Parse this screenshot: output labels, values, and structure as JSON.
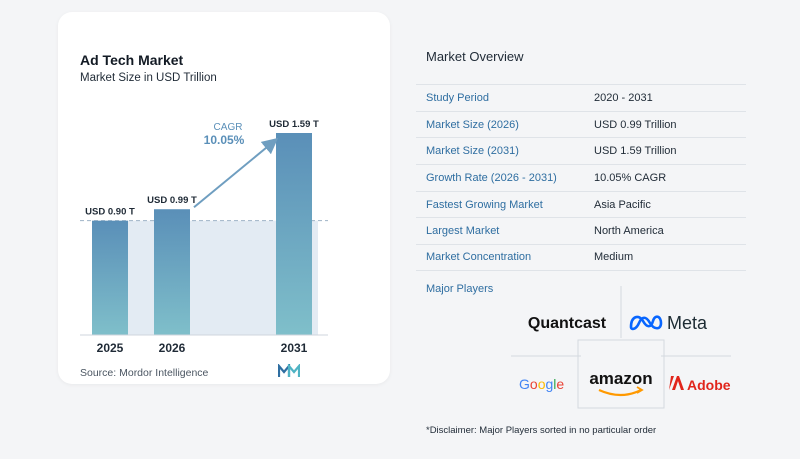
{
  "chart_data": {
    "type": "bar",
    "title": "Ad Tech Market",
    "subtitle": "Market Size in USD Trillion",
    "categories": [
      "2025",
      "2026",
      "2031"
    ],
    "values": [
      0.9,
      0.99,
      1.59
    ],
    "value_labels": [
      "USD 0.90 T",
      "USD 0.99 T",
      "USD 1.59 T"
    ],
    "ylim": [
      0,
      1.59
    ],
    "cagr_label": "CAGR",
    "cagr_value": "10.05%",
    "grid": false,
    "reference_line_value": 0.9
  },
  "source_text": "Source:  Mordor Intelligence",
  "colors": {
    "bar_top": "#5a8fb8",
    "bar_bottom": "#7fbfca",
    "band": "#e3ebf3",
    "accent_blue": "#2f6ea1",
    "arrow": "#6f9ec0"
  },
  "overview": {
    "title": "Market Overview",
    "rows": [
      {
        "label": "Study Period",
        "value": "2020 - 2031"
      },
      {
        "label": "Market Size (2026)",
        "value": "USD 0.99 Trillion"
      },
      {
        "label": "Market Size (2031)",
        "value": "USD 1.59 Trillion"
      },
      {
        "label": "Growth Rate (2026 - 2031)",
        "value": "10.05% CAGR"
      },
      {
        "label": "Fastest Growing Market",
        "value": "Asia Pacific"
      },
      {
        "label": "Largest Market",
        "value": "North America"
      },
      {
        "label": "Market Concentration",
        "value": "Medium"
      }
    ],
    "players_label": "Major Players",
    "players": [
      "Quantcast",
      "Meta",
      "Google",
      "amazon",
      "Adobe"
    ],
    "disclaimer": "*Disclaimer: Major Players sorted in no particular order"
  }
}
